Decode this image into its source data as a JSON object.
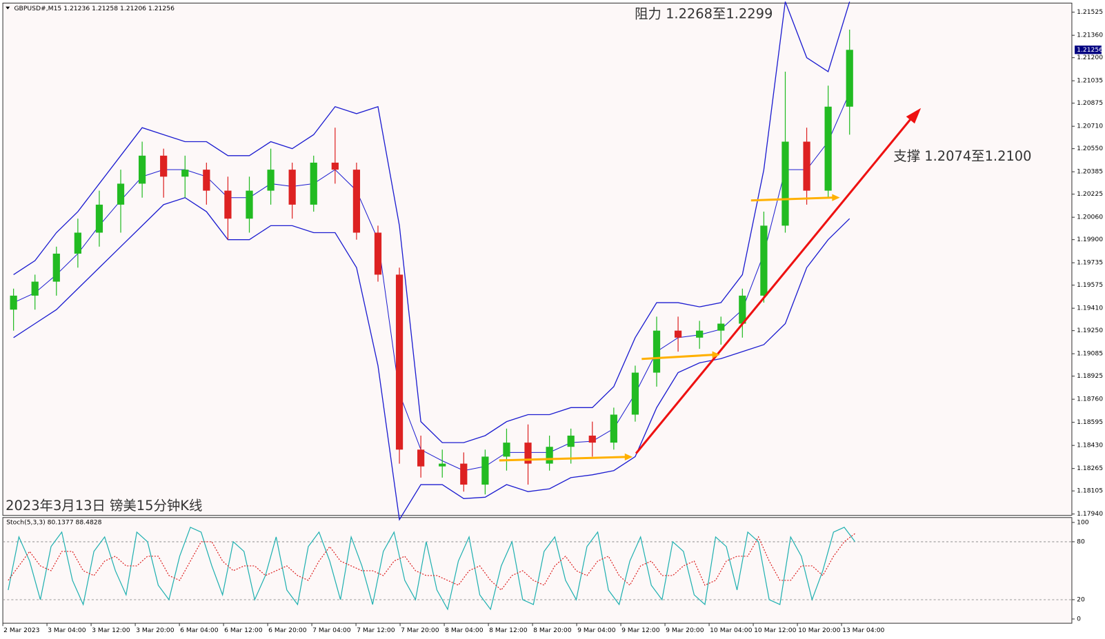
{
  "chart_data": {
    "type": "candlestick",
    "header": "GBPUSD#,M15  1.21236 1.21258 1.21206 1.21256",
    "annotations": [
      "阻力 1.2268至1.2299",
      "支撑 1.2074至1.2100",
      "2023年3月13日 镑美15分钟K线"
    ],
    "last_price": 1.21256,
    "ylim": [
      1.1793,
      1.2159
    ],
    "yticks": [
      1.21525,
      {
        "value": 1.2136,
        "label": "1.21360"
      },
      {
        "value": 1.212,
        "label": "1.21200"
      },
      1.21035,
      1.20875,
      {
        "value": 1.2071,
        "label": "1.20710"
      },
      {
        "value": 1.2055,
        "label": "1.20550"
      },
      1.20385,
      1.20225,
      {
        "value": 1.2006,
        "label": "1.20060"
      },
      {
        "value": 1.199,
        "label": "1.19900"
      },
      1.19735,
      1.19575,
      {
        "value": 1.1941,
        "label": "1.19410"
      },
      {
        "value": 1.1925,
        "label": "1.19250"
      },
      1.19085,
      1.18925,
      {
        "value": 1.1876,
        "label": "1.18760"
      },
      1.18595,
      {
        "value": 1.1843,
        "label": "1.18430"
      },
      1.18265,
      1.18105,
      {
        "value": 1.1794,
        "label": "1.17940"
      }
    ],
    "xticks": [
      "2 Mar 2023",
      "3 Mar 04:00",
      "3 Mar 12:00",
      "3 Mar 20:00",
      "6 Mar 04:00",
      "6 Mar 12:00",
      "6 Mar 20:00",
      "7 Mar 04:00",
      "7 Mar 12:00",
      "7 Mar 20:00",
      "8 Mar 04:00",
      "8 Mar 12:00",
      "8 Mar 20:00",
      "9 Mar 04:00",
      "9 Mar 12:00",
      "9 Mar 20:00",
      "10 Mar 04:00",
      "10 Mar 12:00",
      "10 Mar 20:00",
      "13 Mar 04:00"
    ],
    "up_color": "#22bb22",
    "down_color": "#dd2222",
    "band_color": "#1c1cd0",
    "candles": [
      [
        1.194,
        1.1955,
        1.1925,
        1.195
      ],
      [
        1.195,
        1.1965,
        1.194,
        1.196
      ],
      [
        1.196,
        1.1985,
        1.195,
        1.198
      ],
      [
        1.198,
        1.2005,
        1.197,
        1.1995
      ],
      [
        1.1995,
        1.2025,
        1.1985,
        1.2015
      ],
      [
        1.2015,
        1.204,
        1.1995,
        1.203
      ],
      [
        1.203,
        1.206,
        1.202,
        1.205
      ],
      [
        1.205,
        1.2055,
        1.202,
        1.2035
      ],
      [
        1.2035,
        1.205,
        1.202,
        1.204
      ],
      [
        1.204,
        1.2045,
        1.2015,
        1.2025
      ],
      [
        1.2025,
        1.2035,
        1.199,
        1.2005
      ],
      [
        1.2005,
        1.2035,
        1.1995,
        1.2025
      ],
      [
        1.2025,
        1.2055,
        1.2015,
        1.204
      ],
      [
        1.204,
        1.2045,
        1.2005,
        1.2015
      ],
      [
        1.2015,
        1.205,
        1.201,
        1.2045
      ],
      [
        1.2045,
        1.207,
        1.203,
        1.204
      ],
      [
        1.204,
        1.2045,
        1.199,
        1.1995
      ],
      [
        1.1995,
        1.2,
        1.196,
        1.1965
      ],
      [
        1.1965,
        1.197,
        1.183,
        1.184
      ],
      [
        1.184,
        1.185,
        1.182,
        1.1828
      ],
      [
        1.1828,
        1.184,
        1.182,
        1.183
      ],
      [
        1.183,
        1.1838,
        1.181,
        1.1815
      ],
      [
        1.1815,
        1.184,
        1.1808,
        1.1835
      ],
      [
        1.1835,
        1.1855,
        1.1825,
        1.1845
      ],
      [
        1.1845,
        1.1858,
        1.1815,
        1.183
      ],
      [
        1.183,
        1.185,
        1.1825,
        1.1842
      ],
      [
        1.1842,
        1.1855,
        1.183,
        1.185
      ],
      [
        1.185,
        1.186,
        1.1835,
        1.1845
      ],
      [
        1.1845,
        1.187,
        1.184,
        1.1865
      ],
      [
        1.1865,
        1.19,
        1.186,
        1.1895
      ],
      [
        1.1895,
        1.1935,
        1.1885,
        1.1925
      ],
      [
        1.1925,
        1.1935,
        1.191,
        1.192
      ],
      [
        1.192,
        1.1932,
        1.1912,
        1.1925
      ],
      [
        1.1925,
        1.1935,
        1.1915,
        1.193
      ],
      [
        1.193,
        1.1955,
        1.192,
        1.195
      ],
      [
        1.195,
        1.201,
        1.1945,
        1.2
      ],
      [
        1.2,
        1.211,
        1.1995,
        1.206
      ],
      [
        1.206,
        1.207,
        1.2015,
        1.2025
      ],
      [
        1.2025,
        1.21,
        1.202,
        1.2085
      ],
      [
        1.2085,
        1.214,
        1.2065,
        1.21256
      ]
    ],
    "bands": {
      "upper": [
        1.1965,
        1.1975,
        1.1995,
        1.201,
        1.203,
        1.205,
        1.207,
        1.2065,
        1.206,
        1.206,
        1.205,
        1.205,
        1.206,
        1.2055,
        1.2065,
        1.2085,
        1.208,
        1.2085,
        1.2,
        1.186,
        1.1845,
        1.1845,
        1.185,
        1.186,
        1.1865,
        1.1865,
        1.187,
        1.187,
        1.1885,
        1.192,
        1.1945,
        1.1945,
        1.1942,
        1.1945,
        1.1965,
        1.204,
        1.216,
        1.212,
        1.211,
        1.216
      ],
      "middle": [
        1.1945,
        1.1952,
        1.1965,
        1.198,
        1.2,
        1.2018,
        1.2035,
        1.204,
        1.204,
        1.2035,
        1.202,
        1.202,
        1.203,
        1.2028,
        1.203,
        1.204,
        1.2025,
        1.199,
        1.188,
        1.184,
        1.1832,
        1.1825,
        1.1828,
        1.1838,
        1.1838,
        1.1838,
        1.1845,
        1.1846,
        1.1855,
        1.188,
        1.191,
        1.192,
        1.1922,
        1.1926,
        1.194,
        1.198,
        1.204,
        1.204,
        1.206,
        1.2095
      ],
      "lower": [
        1.192,
        1.193,
        1.194,
        1.1955,
        1.197,
        1.1985,
        1.2,
        1.2015,
        1.202,
        1.201,
        1.199,
        1.199,
        1.2,
        1.2,
        1.1995,
        1.1995,
        1.197,
        1.19,
        1.179,
        1.1815,
        1.1815,
        1.1805,
        1.1806,
        1.1815,
        1.181,
        1.1812,
        1.182,
        1.1822,
        1.1825,
        1.1835,
        1.187,
        1.1895,
        1.1902,
        1.1905,
        1.191,
        1.1915,
        1.193,
        1.197,
        1.199,
        1.2005
      ]
    },
    "stoch": {
      "label": "Stoch(5,3,3) 80.1377 88.4828",
      "ylim": [
        -4.4,
        105.1
      ],
      "yticks": [
        100,
        80,
        20,
        0
      ],
      "levels": [
        80,
        20
      ],
      "series": [
        {
          "name": "main",
          "color": "#1fb0b0",
          "values": [
            30,
            85,
            60,
            20,
            75,
            90,
            40,
            15,
            70,
            85,
            50,
            25,
            90,
            80,
            35,
            20,
            65,
            95,
            90,
            55,
            25,
            80,
            70,
            20,
            45,
            85,
            30,
            15,
            75,
            90,
            60,
            20,
            85,
            55,
            15,
            70,
            90,
            40,
            20,
            80,
            30,
            10,
            60,
            85,
            25,
            10,
            55,
            80,
            20,
            15,
            70,
            85,
            40,
            20,
            75,
            90,
            30,
            15,
            60,
            85,
            35,
            20,
            80,
            70,
            25,
            15,
            85,
            75,
            30,
            90,
            80,
            20,
            15,
            85,
            65,
            20,
            50,
            90,
            95,
            80.1377
          ]
        },
        {
          "name": "signal",
          "color": "#dd2222",
          "values": [
            40,
            55,
            70,
            55,
            50,
            70,
            70,
            50,
            45,
            60,
            65,
            55,
            55,
            65,
            65,
            45,
            40,
            60,
            80,
            80,
            60,
            50,
            55,
            55,
            45,
            50,
            55,
            45,
            40,
            60,
            75,
            60,
            55,
            50,
            50,
            45,
            60,
            65,
            50,
            45,
            45,
            40,
            35,
            50,
            55,
            40,
            30,
            45,
            50,
            40,
            35,
            55,
            65,
            50,
            45,
            60,
            65,
            45,
            35,
            55,
            60,
            45,
            45,
            55,
            60,
            35,
            40,
            60,
            65,
            65,
            85,
            60,
            40,
            40,
            55,
            55,
            45,
            65,
            80,
            88.4828
          ]
        }
      ]
    }
  }
}
